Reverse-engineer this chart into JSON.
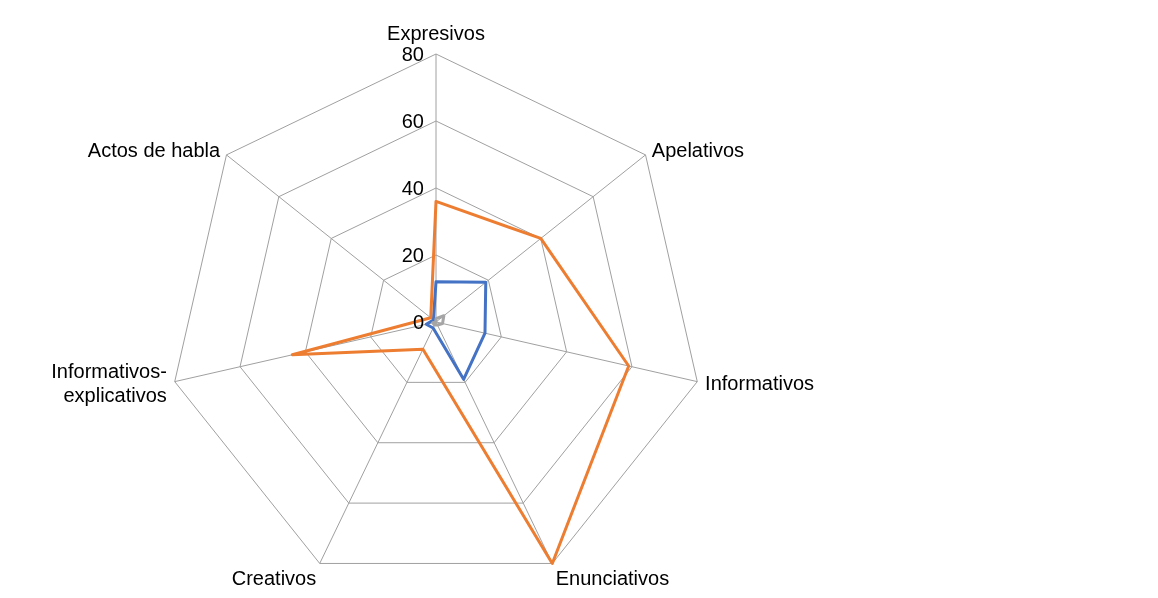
{
  "chart_data": {
    "type": "radar",
    "categories": [
      "Expresivos",
      "Apelativos",
      "Informativos",
      "Enunciativos",
      "Creativos",
      "Informativos-explicativos",
      "Actos de habla"
    ],
    "ylim": [
      0,
      80
    ],
    "yticks": [
      0,
      20,
      40,
      60,
      80
    ],
    "grid": true,
    "series": [
      {
        "color": "#4472c4",
        "values": [
          12,
          19,
          15,
          19,
          2,
          3,
          1
        ]
      },
      {
        "color": "#ed7d31",
        "values": [
          36,
          40,
          59,
          80,
          9,
          44,
          2
        ]
      },
      {
        "color": "#a5a5a5",
        "values": [
          1,
          3,
          2,
          1,
          1,
          1,
          0
        ]
      }
    ]
  }
}
